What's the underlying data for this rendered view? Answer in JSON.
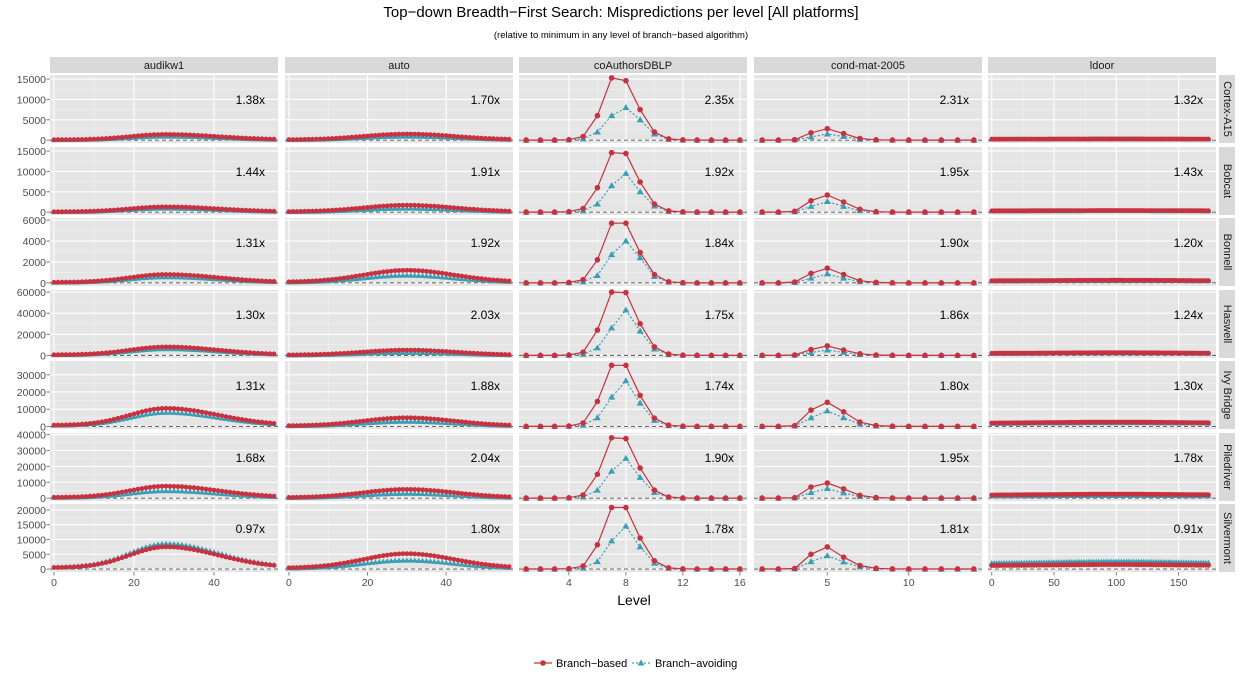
{
  "chart_data": {
    "type": "line",
    "title": "Top−down Breadth−First Search: Mispredictions per level [All platforms]",
    "subtitle": "(relative to minimum in any level of branch−based algorithm)",
    "xlabel": "Level",
    "ylabel": "",
    "columns": [
      "audikw1",
      "auto",
      "coAuthorsDBLP",
      "cond-mat-2005",
      "ldoor"
    ],
    "rows": [
      "Cortex-A15",
      "Bobcat",
      "Bonnell",
      "Haswell",
      "Ivy Bridge",
      "Piledriver",
      "Silvermont"
    ],
    "legend": {
      "position": "bottom",
      "entries": [
        {
          "name": "Branch−based",
          "color": "#c8313f",
          "marker": "circle",
          "linestyle": "solid"
        },
        {
          "name": "Branch−avoiding",
          "color": "#3a9fb5",
          "marker": "triangle",
          "linestyle": "dotted"
        }
      ]
    },
    "column_axes": [
      {
        "xlim": [
          -1,
          56
        ],
        "ticks": [
          0,
          20,
          40
        ],
        "tick_labels": [
          "0",
          "20",
          "40"
        ]
      },
      {
        "xlim": [
          -1,
          57
        ],
        "ticks": [
          0,
          20,
          40
        ],
        "tick_labels": [
          "0",
          "20",
          "40"
        ]
      },
      {
        "xlim": [
          0.5,
          16.5
        ],
        "ticks": [
          4,
          8,
          12,
          16
        ],
        "tick_labels": [
          "4",
          "8",
          "12",
          "16"
        ]
      },
      {
        "xlim": [
          0.5,
          14.5
        ],
        "ticks": [
          5,
          10
        ],
        "tick_labels": [
          "5",
          "10"
        ]
      },
      {
        "xlim": [
          -3,
          180
        ],
        "ticks": [
          0,
          50,
          100,
          150
        ],
        "tick_labels": [
          "0",
          "50",
          "100",
          "150"
        ]
      }
    ],
    "row_axes": [
      {
        "ylim": [
          -700,
          16000
        ],
        "ticks": [
          0,
          5000,
          10000,
          15000
        ],
        "tick_labels": [
          "0",
          "5000",
          "10000",
          "15000"
        ]
      },
      {
        "ylim": [
          -700,
          16000
        ],
        "ticks": [
          0,
          5000,
          10000,
          15000
        ],
        "tick_labels": [
          "0",
          "5000",
          "10000",
          "15000"
        ]
      },
      {
        "ylim": [
          -300,
          6200
        ],
        "ticks": [
          0,
          2000,
          4000,
          6000
        ],
        "tick_labels": [
          "0",
          "2000",
          "4000",
          "6000"
        ]
      },
      {
        "ylim": [
          -2500,
          62000
        ],
        "ticks": [
          0,
          20000,
          40000,
          60000
        ],
        "tick_labels": [
          "0",
          "20000",
          "40000",
          "60000"
        ]
      },
      {
        "ylim": [
          -1500,
          38000
        ],
        "ticks": [
          0,
          10000,
          20000,
          30000
        ],
        "tick_labels": [
          "0",
          "10000",
          "20000",
          "30000"
        ]
      },
      {
        "ylim": [
          -1800,
          41000
        ],
        "ticks": [
          0,
          10000,
          20000,
          30000,
          40000
        ],
        "tick_labels": [
          "0",
          "10000",
          "20000",
          "30000",
          "40000"
        ]
      },
      {
        "ylim": [
          -1000,
          22000
        ],
        "ticks": [
          0,
          5000,
          10000,
          15000,
          20000
        ],
        "tick_labels": [
          "0",
          "5000",
          "10000",
          "15000",
          "20000"
        ]
      }
    ],
    "ratios": [
      [
        "1.38x",
        "1.70x",
        "2.35x",
        "2.31x",
        "1.32x"
      ],
      [
        "1.44x",
        "1.91x",
        "1.92x",
        "1.95x",
        "1.43x"
      ],
      [
        "1.31x",
        "1.92x",
        "1.84x",
        "1.90x",
        "1.20x"
      ],
      [
        "1.30x",
        "2.03x",
        "1.75x",
        "1.86x",
        "1.24x"
      ],
      [
        "1.31x",
        "1.88x",
        "1.74x",
        "1.80x",
        "1.30x"
      ],
      [
        "1.68x",
        "2.04x",
        "1.90x",
        "1.95x",
        "1.78x"
      ],
      [
        "0.97x",
        "1.80x",
        "1.78x",
        "1.81x",
        "0.91x"
      ]
    ],
    "minimum_reference_line": {
      "y": 0,
      "style": "dashed",
      "color": "#555555"
    },
    "panel_series": {
      "coAuthorsDBLP": {
        "x": [
          1,
          2,
          3,
          4,
          5,
          6,
          7,
          8,
          9,
          10,
          11,
          12,
          13,
          14,
          15,
          16
        ],
        "branch_based": [
          [
            0,
            0,
            0,
            100,
            900,
            6000,
            15300,
            14600,
            7500,
            2000,
            300,
            50,
            10,
            0,
            0,
            0
          ],
          [
            0,
            0,
            0,
            100,
            900,
            6000,
            14600,
            14400,
            7400,
            2000,
            300,
            50,
            10,
            0,
            0,
            0
          ],
          [
            0,
            0,
            0,
            30,
            300,
            2200,
            5700,
            5700,
            2900,
            800,
            100,
            20,
            0,
            0,
            0,
            0
          ],
          [
            0,
            0,
            0,
            300,
            3000,
            24000,
            60000,
            59500,
            30000,
            8000,
            1200,
            200,
            30,
            0,
            0,
            0
          ],
          [
            0,
            0,
            0,
            200,
            2000,
            14500,
            35500,
            35500,
            18000,
            4800,
            700,
            100,
            20,
            0,
            0,
            0
          ],
          [
            0,
            0,
            0,
            200,
            2000,
            15000,
            38000,
            37500,
            19000,
            5000,
            700,
            100,
            20,
            0,
            0,
            0
          ],
          [
            0,
            0,
            0,
            100,
            1000,
            8200,
            20800,
            20800,
            10500,
            2800,
            400,
            60,
            10,
            0,
            0,
            0
          ]
        ],
        "branch_avoiding": [
          [
            0,
            0,
            0,
            50,
            300,
            2000,
            6000,
            8000,
            5000,
            1500,
            200,
            30,
            0,
            0,
            0,
            0
          ],
          [
            0,
            0,
            0,
            50,
            300,
            2000,
            6500,
            9500,
            5000,
            1500,
            200,
            30,
            0,
            0,
            0,
            0
          ],
          [
            0,
            0,
            0,
            20,
            100,
            700,
            2700,
            4000,
            2400,
            600,
            80,
            10,
            0,
            0,
            0,
            0
          ],
          [
            0,
            0,
            0,
            100,
            1000,
            7000,
            26000,
            43000,
            23000,
            6000,
            800,
            100,
            10,
            0,
            0,
            0
          ],
          [
            0,
            0,
            0,
            100,
            700,
            5000,
            17000,
            26500,
            13500,
            3500,
            500,
            80,
            10,
            0,
            0,
            0
          ],
          [
            0,
            0,
            0,
            100,
            700,
            5000,
            17000,
            25000,
            13000,
            3500,
            500,
            80,
            10,
            0,
            0,
            0
          ],
          [
            0,
            0,
            0,
            50,
            300,
            2500,
            9500,
            14500,
            7500,
            2000,
            300,
            50,
            0,
            0,
            0,
            0
          ]
        ]
      },
      "cond-mat-2005": {
        "x": [
          1,
          2,
          3,
          4,
          5,
          6,
          7,
          8,
          9,
          10,
          11,
          12,
          13,
          14
        ],
        "branch_based": [
          [
            0,
            0,
            100,
            1800,
            2800,
            1600,
            400,
            80,
            20,
            0,
            0,
            0,
            0,
            0
          ],
          [
            0,
            0,
            200,
            2800,
            4200,
            2500,
            700,
            100,
            20,
            0,
            0,
            0,
            0,
            0
          ],
          [
            0,
            0,
            80,
            900,
            1400,
            800,
            200,
            40,
            10,
            0,
            0,
            0,
            0,
            0
          ],
          [
            0,
            0,
            300,
            5500,
            9000,
            5000,
            1500,
            300,
            60,
            10,
            0,
            0,
            0,
            0
          ],
          [
            0,
            0,
            400,
            9500,
            14000,
            8500,
            2500,
            500,
            100,
            20,
            0,
            0,
            0,
            0
          ],
          [
            0,
            0,
            300,
            7000,
            9500,
            5800,
            1800,
            350,
            70,
            10,
            0,
            0,
            0,
            0
          ],
          [
            0,
            0,
            200,
            5000,
            7500,
            4000,
            1200,
            250,
            50,
            10,
            0,
            0,
            0,
            0
          ]
        ],
        "branch_avoiding": [
          [
            0,
            0,
            50,
            800,
            1500,
            900,
            200,
            40,
            10,
            0,
            0,
            0,
            0,
            0
          ],
          [
            0,
            0,
            100,
            1400,
            2600,
            1400,
            350,
            60,
            10,
            0,
            0,
            0,
            0,
            0
          ],
          [
            0,
            0,
            40,
            450,
            850,
            450,
            110,
            20,
            0,
            0,
            0,
            0,
            0,
            0
          ],
          [
            0,
            0,
            150,
            2800,
            5000,
            2800,
            800,
            150,
            30,
            0,
            0,
            0,
            0,
            0
          ],
          [
            0,
            0,
            250,
            5000,
            9000,
            5000,
            1400,
            250,
            50,
            10,
            0,
            0,
            0,
            0
          ],
          [
            0,
            0,
            150,
            3500,
            6000,
            3300,
            1000,
            200,
            40,
            0,
            0,
            0,
            0,
            0
          ],
          [
            0,
            0,
            100,
            2500,
            4500,
            2400,
            700,
            150,
            30,
            0,
            0,
            0,
            0,
            0
          ]
        ]
      },
      "audikw1": {
        "x_range": [
          0,
          55
        ],
        "profile": "peak near level 28",
        "branch_based_peak": [
          1400,
          1300,
          800,
          8000,
          10500,
          7500,
          7500
        ],
        "branch_avoiding_peak": [
          900,
          900,
          550,
          6000,
          8000,
          4500,
          8500
        ]
      },
      "auto": {
        "x_range": [
          0,
          56
        ],
        "profile": "peak near level 30",
        "branch_based_peak": [
          1500,
          1700,
          1200,
          5000,
          5000,
          5500,
          5200
        ],
        "branch_avoiding_peak": [
          900,
          900,
          700,
          2500,
          2800,
          2800,
          2900
        ]
      },
      "ldoor": {
        "x_range": [
          0,
          175
        ],
        "profile": "nearly flat",
        "branch_based_level": [
          300,
          400,
          250,
          2500,
          2500,
          2500,
          1500
        ],
        "branch_avoiding_level": [
          250,
          300,
          200,
          2000,
          2000,
          1500,
          2500
        ]
      }
    }
  }
}
